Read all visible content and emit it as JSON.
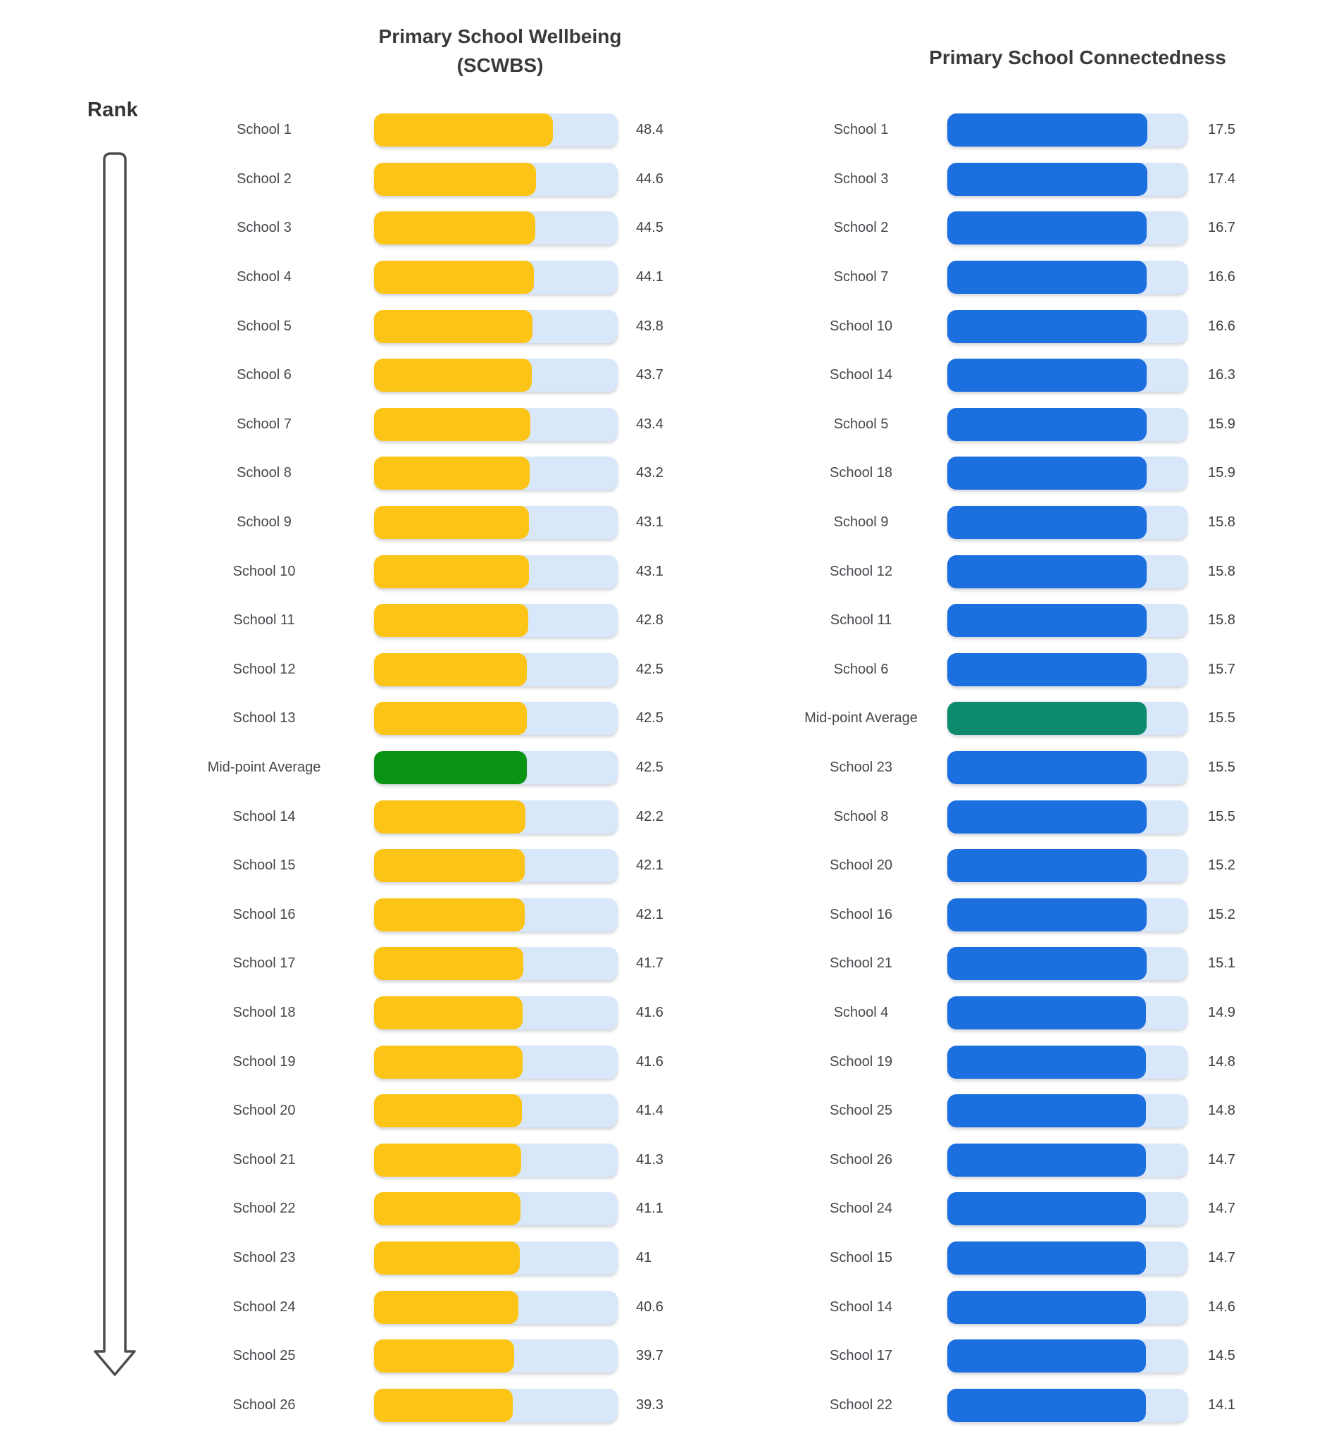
{
  "rank": {
    "label": "Rank"
  },
  "charts": {
    "wellbeing": {
      "title_line1": "Primary School Wellbeing",
      "title_line2": "(SCWBS)",
      "bar_color": "#FBC417",
      "highlight_color": "#0A9414",
      "track_color": "#D9E7FB",
      "rows": [
        {
          "label": "School 1",
          "value": "48.4",
          "highlight": false
        },
        {
          "label": "School 2",
          "value": "44.6",
          "highlight": false
        },
        {
          "label": "School 3",
          "value": "44.5",
          "highlight": false
        },
        {
          "label": "School 4",
          "value": "44.1",
          "highlight": false
        },
        {
          "label": "School 5",
          "value": "43.8",
          "highlight": false
        },
        {
          "label": "School 6",
          "value": "43.7",
          "highlight": false
        },
        {
          "label": "School 7",
          "value": "43.4",
          "highlight": false
        },
        {
          "label": "School 8",
          "value": "43.2",
          "highlight": false
        },
        {
          "label": "School 9",
          "value": "43.1",
          "highlight": false
        },
        {
          "label": "School 10",
          "value": "43.1",
          "highlight": false
        },
        {
          "label": "School 11",
          "value": "42.8",
          "highlight": false
        },
        {
          "label": "School 12",
          "value": "42.5",
          "highlight": false
        },
        {
          "label": "School 13",
          "value": "42.5",
          "highlight": false
        },
        {
          "label": "Mid-point Average",
          "value": "42.5",
          "highlight": true
        },
        {
          "label": "School 14",
          "value": "42.2",
          "highlight": false
        },
        {
          "label": "School 15",
          "value": "42.1",
          "highlight": false
        },
        {
          "label": "School 16",
          "value": "42.1",
          "highlight": false
        },
        {
          "label": "School 17",
          "value": "41.7",
          "highlight": false
        },
        {
          "label": "School 18",
          "value": "41.6",
          "highlight": false
        },
        {
          "label": "School 19",
          "value": "41.6",
          "highlight": false
        },
        {
          "label": "School 20",
          "value": "41.4",
          "highlight": false
        },
        {
          "label": "School 21",
          "value": "41.3",
          "highlight": false
        },
        {
          "label": "School 22",
          "value": "41.1",
          "highlight": false
        },
        {
          "label": "School 23",
          "value": "41",
          "highlight": false
        },
        {
          "label": "School 24",
          "value": "40.6",
          "highlight": false
        },
        {
          "label": "School 25",
          "value": "39.7",
          "highlight": false
        },
        {
          "label": "School 26",
          "value": "39.3",
          "highlight": false
        }
      ]
    },
    "connectedness": {
      "title": "Primary School Connectedness",
      "bar_color": "#1B6FDF",
      "highlight_color": "#0E8A6D",
      "track_color": "#D9E7FB",
      "rows": [
        {
          "label": "School 1",
          "value": "17.5",
          "highlight": false
        },
        {
          "label": "School 3",
          "value": "17.4",
          "highlight": false
        },
        {
          "label": "School 2",
          "value": "16.7",
          "highlight": false
        },
        {
          "label": "School 7",
          "value": "16.6",
          "highlight": false
        },
        {
          "label": "School 10",
          "value": "16.6",
          "highlight": false
        },
        {
          "label": "School 14",
          "value": "16.3",
          "highlight": false
        },
        {
          "label": "School 5",
          "value": "15.9",
          "highlight": false
        },
        {
          "label": "School 18",
          "value": "15.9",
          "highlight": false
        },
        {
          "label": "School 9",
          "value": "15.8",
          "highlight": false
        },
        {
          "label": "School 12",
          "value": "15.8",
          "highlight": false
        },
        {
          "label": "School 11",
          "value": "15.8",
          "highlight": false
        },
        {
          "label": "School 6",
          "value": "15.7",
          "highlight": false
        },
        {
          "label": "Mid-point Average",
          "value": "15.5",
          "highlight": true
        },
        {
          "label": "School 23",
          "value": "15.5",
          "highlight": false
        },
        {
          "label": "School 8",
          "value": "15.5",
          "highlight": false
        },
        {
          "label": "School 20",
          "value": "15.2",
          "highlight": false
        },
        {
          "label": "School 16",
          "value": "15.2",
          "highlight": false
        },
        {
          "label": "School 21",
          "value": "15.1",
          "highlight": false
        },
        {
          "label": "School 4",
          "value": "14.9",
          "highlight": false
        },
        {
          "label": "School 19",
          "value": "14.8",
          "highlight": false
        },
        {
          "label": "School 25",
          "value": "14.8",
          "highlight": false
        },
        {
          "label": "School 26",
          "value": "14.7",
          "highlight": false
        },
        {
          "label": "School 24",
          "value": "14.7",
          "highlight": false
        },
        {
          "label": "School 15",
          "value": "14.7",
          "highlight": false
        },
        {
          "label": "School 14",
          "value": "14.6",
          "highlight": false
        },
        {
          "label": "School 17",
          "value": "14.5",
          "highlight": false
        },
        {
          "label": "School 22",
          "value": "14.1",
          "highlight": false
        }
      ]
    }
  },
  "chart_data": [
    {
      "type": "bar",
      "orientation": "horizontal",
      "title": "Primary School Wellbeing (SCWBS)",
      "categories": [
        "School 1",
        "School 2",
        "School 3",
        "School 4",
        "School 5",
        "School 6",
        "School 7",
        "School 8",
        "School 9",
        "School 10",
        "School 11",
        "School 12",
        "School 13",
        "Mid-point Average",
        "School 14",
        "School 15",
        "School 16",
        "School 17",
        "School 18",
        "School 19",
        "School 20",
        "School 21",
        "School 22",
        "School 23",
        "School 24",
        "School 25",
        "School 26"
      ],
      "values": [
        48.4,
        44.6,
        44.5,
        44.1,
        43.8,
        43.7,
        43.4,
        43.2,
        43.1,
        43.1,
        42.8,
        42.5,
        42.5,
        42.5,
        42.2,
        42.1,
        42.1,
        41.7,
        41.6,
        41.6,
        41.4,
        41.3,
        41.1,
        41,
        40.6,
        39.7,
        39.3
      ],
      "highlight_category": "Mid-point Average",
      "sort_order": "descending (ranked)",
      "value_range_shown": [
        39.3,
        48.4
      ],
      "grid": false,
      "legend": "none",
      "bar_color": "#FBC417",
      "highlight_color": "#0A9414",
      "track_color": "#D9E7FB"
    },
    {
      "type": "bar",
      "orientation": "horizontal",
      "title": "Primary School Connectedness",
      "categories": [
        "School 1",
        "School 3",
        "School 2",
        "School 7",
        "School 10",
        "School 14",
        "School 5",
        "School 18",
        "School 9",
        "School 12",
        "School 11",
        "School 6",
        "Mid-point Average",
        "School 23",
        "School 8",
        "School 20",
        "School 16",
        "School 21",
        "School 4",
        "School 19",
        "School 25",
        "School 26",
        "School 24",
        "School 15",
        "School 14",
        "School 17",
        "School 22"
      ],
      "values": [
        17.5,
        17.4,
        16.7,
        16.6,
        16.6,
        16.3,
        15.9,
        15.9,
        15.8,
        15.8,
        15.8,
        15.7,
        15.5,
        15.5,
        15.5,
        15.2,
        15.2,
        15.1,
        14.9,
        14.8,
        14.8,
        14.7,
        14.7,
        14.7,
        14.6,
        14.5,
        14.1
      ],
      "highlight_category": "Mid-point Average",
      "sort_order": "descending (ranked)",
      "value_range_shown": [
        14.1,
        17.5
      ],
      "grid": false,
      "legend": "none",
      "bar_color": "#1B6FDF",
      "highlight_color": "#0E8A6D",
      "track_color": "#D9E7FB"
    }
  ]
}
